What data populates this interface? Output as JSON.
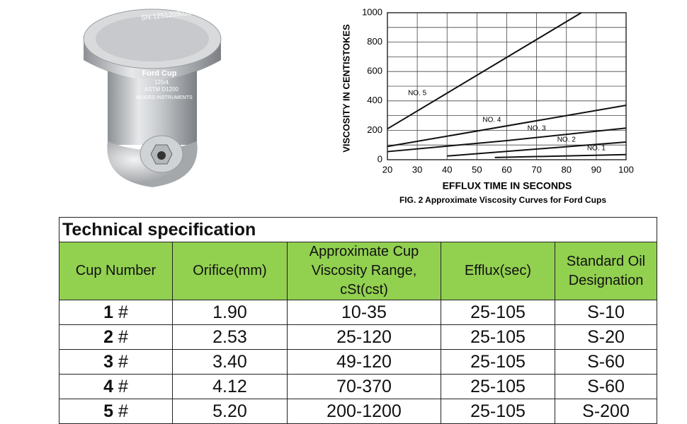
{
  "photo": {
    "serial": "SN:1251209020",
    "brand": "Ford Cup",
    "model": "125/4",
    "standard": "ASTM D1200",
    "maker": "BIUGED INSTRUMENTS"
  },
  "chart_data": {
    "type": "line",
    "caption": "FIG. 2 Approximate Viscosity Curves for Ford Cups",
    "x_label": "EFFLUX TIME IN SECONDS",
    "y_label": "VISCOSITY IN CENTISTOKES",
    "xlim": [
      20,
      100
    ],
    "xticks": [
      20,
      30,
      40,
      50,
      60,
      70,
      80,
      90,
      100
    ],
    "ylim": [
      0,
      1000
    ],
    "yticks": [
      0,
      200,
      400,
      600,
      800,
      1000
    ],
    "y_minor_grid": [
      100,
      300,
      500,
      700,
      900
    ],
    "grid": true,
    "series": [
      {
        "name": "NO. 1",
        "color": "#111111",
        "x": [
          56,
          100
        ],
        "values": [
          15,
          35
        ]
      },
      {
        "name": "NO. 2",
        "color": "#111111",
        "x": [
          40,
          100
        ],
        "values": [
          25,
          120
        ]
      },
      {
        "name": "NO. 3",
        "color": "#111111",
        "x": [
          20,
          60,
          100
        ],
        "values": [
          55,
          130,
          215
        ]
      },
      {
        "name": "NO. 4",
        "color": "#111111",
        "x": [
          20,
          100
        ],
        "values": [
          90,
          370
        ]
      },
      {
        "name": "NO. 5",
        "color": "#111111",
        "x": [
          20,
          85
        ],
        "values": [
          210,
          1000
        ]
      }
    ]
  },
  "table": {
    "title": "Technical specification",
    "headers": [
      "Cup Number",
      "Orifice(mm)",
      "Approximate Cup Viscosity Range, cSt(cst)",
      "Efflux(sec)",
      "Standard Oil Designation"
    ],
    "rows": [
      {
        "cup": "1",
        "suffix": "#",
        "cells": [
          "1.90",
          "10-35",
          "25-105",
          "S-10"
        ]
      },
      {
        "cup": "2",
        "suffix": "#",
        "cells": [
          "2.53",
          "25-120",
          "25-105",
          "S-20"
        ]
      },
      {
        "cup": "3",
        "suffix": "#",
        "cells": [
          "3.40",
          "49-120",
          "25-105",
          "S-60"
        ]
      },
      {
        "cup": "4",
        "suffix": "#",
        "cells": [
          "4.12",
          "70-370",
          "25-105",
          "S-60"
        ]
      },
      {
        "cup": "5",
        "suffix": "#",
        "cells": [
          "5.20",
          "200-1200",
          "25-105",
          "S-200"
        ]
      }
    ]
  }
}
